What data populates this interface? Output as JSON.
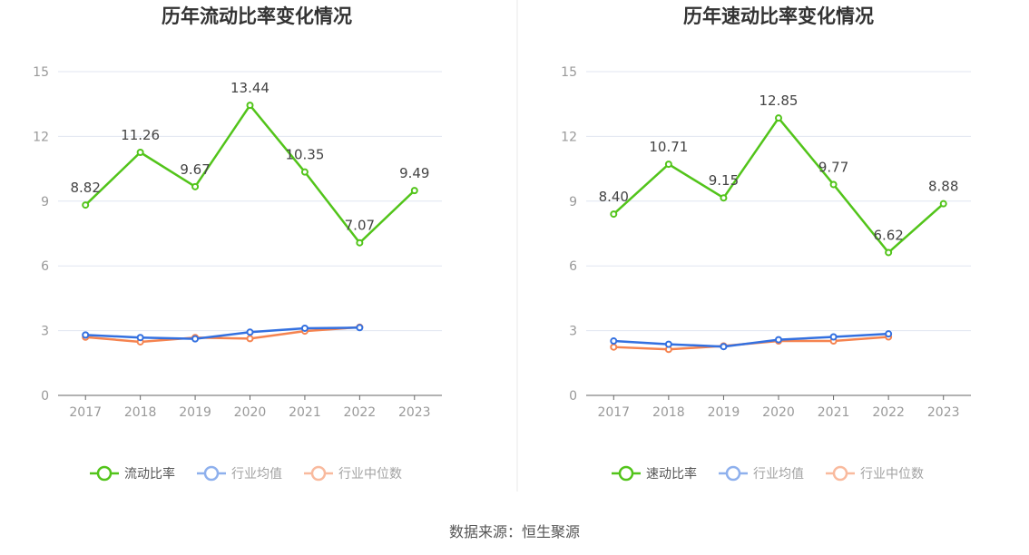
{
  "source": "数据来源：恒生聚源",
  "colors": {
    "main": "#52c41a",
    "avg": "#3370e0",
    "median": "#f5834f",
    "grid": "#e0e6f1",
    "axis": "#666666"
  },
  "chart_data": [
    {
      "type": "line",
      "title": "历年流动比率变化情况",
      "categories": [
        "2017",
        "2018",
        "2019",
        "2020",
        "2021",
        "2022",
        "2023"
      ],
      "ylim": [
        0,
        15
      ],
      "yticks": [
        0,
        3,
        6,
        9,
        12,
        15
      ],
      "grid": true,
      "legend_position": "bottom",
      "series": [
        {
          "name": "流动比率",
          "values": [
            8.82,
            11.26,
            9.67,
            13.44,
            10.35,
            7.07,
            9.49
          ],
          "labels": [
            "8.82",
            "11.26",
            "9.67",
            "13.44",
            "10.35",
            "7.07",
            "9.49"
          ]
        },
        {
          "name": "行业均值",
          "values": [
            2.8,
            2.68,
            2.62,
            2.93,
            3.11,
            3.14,
            null
          ]
        },
        {
          "name": "行业中位数",
          "values": [
            2.7,
            2.48,
            2.68,
            2.63,
            2.98,
            3.16,
            null
          ]
        }
      ]
    },
    {
      "type": "line",
      "title": "历年速动比率变化情况",
      "categories": [
        "2017",
        "2018",
        "2019",
        "2020",
        "2021",
        "2022",
        "2023"
      ],
      "ylim": [
        0,
        15
      ],
      "yticks": [
        0,
        3,
        6,
        9,
        12,
        15
      ],
      "grid": true,
      "legend_position": "bottom",
      "series": [
        {
          "name": "速动比率",
          "values": [
            8.4,
            10.71,
            9.15,
            12.85,
            9.77,
            6.62,
            8.88
          ],
          "labels": [
            "8.40",
            "10.71",
            "9.15",
            "12.85",
            "9.77",
            "6.62",
            "8.88"
          ]
        },
        {
          "name": "行业均值",
          "values": [
            2.52,
            2.37,
            2.26,
            2.58,
            2.71,
            2.85,
            null
          ]
        },
        {
          "name": "行业中位数",
          "values": [
            2.24,
            2.13,
            2.29,
            2.52,
            2.52,
            2.71,
            null
          ]
        }
      ]
    }
  ]
}
